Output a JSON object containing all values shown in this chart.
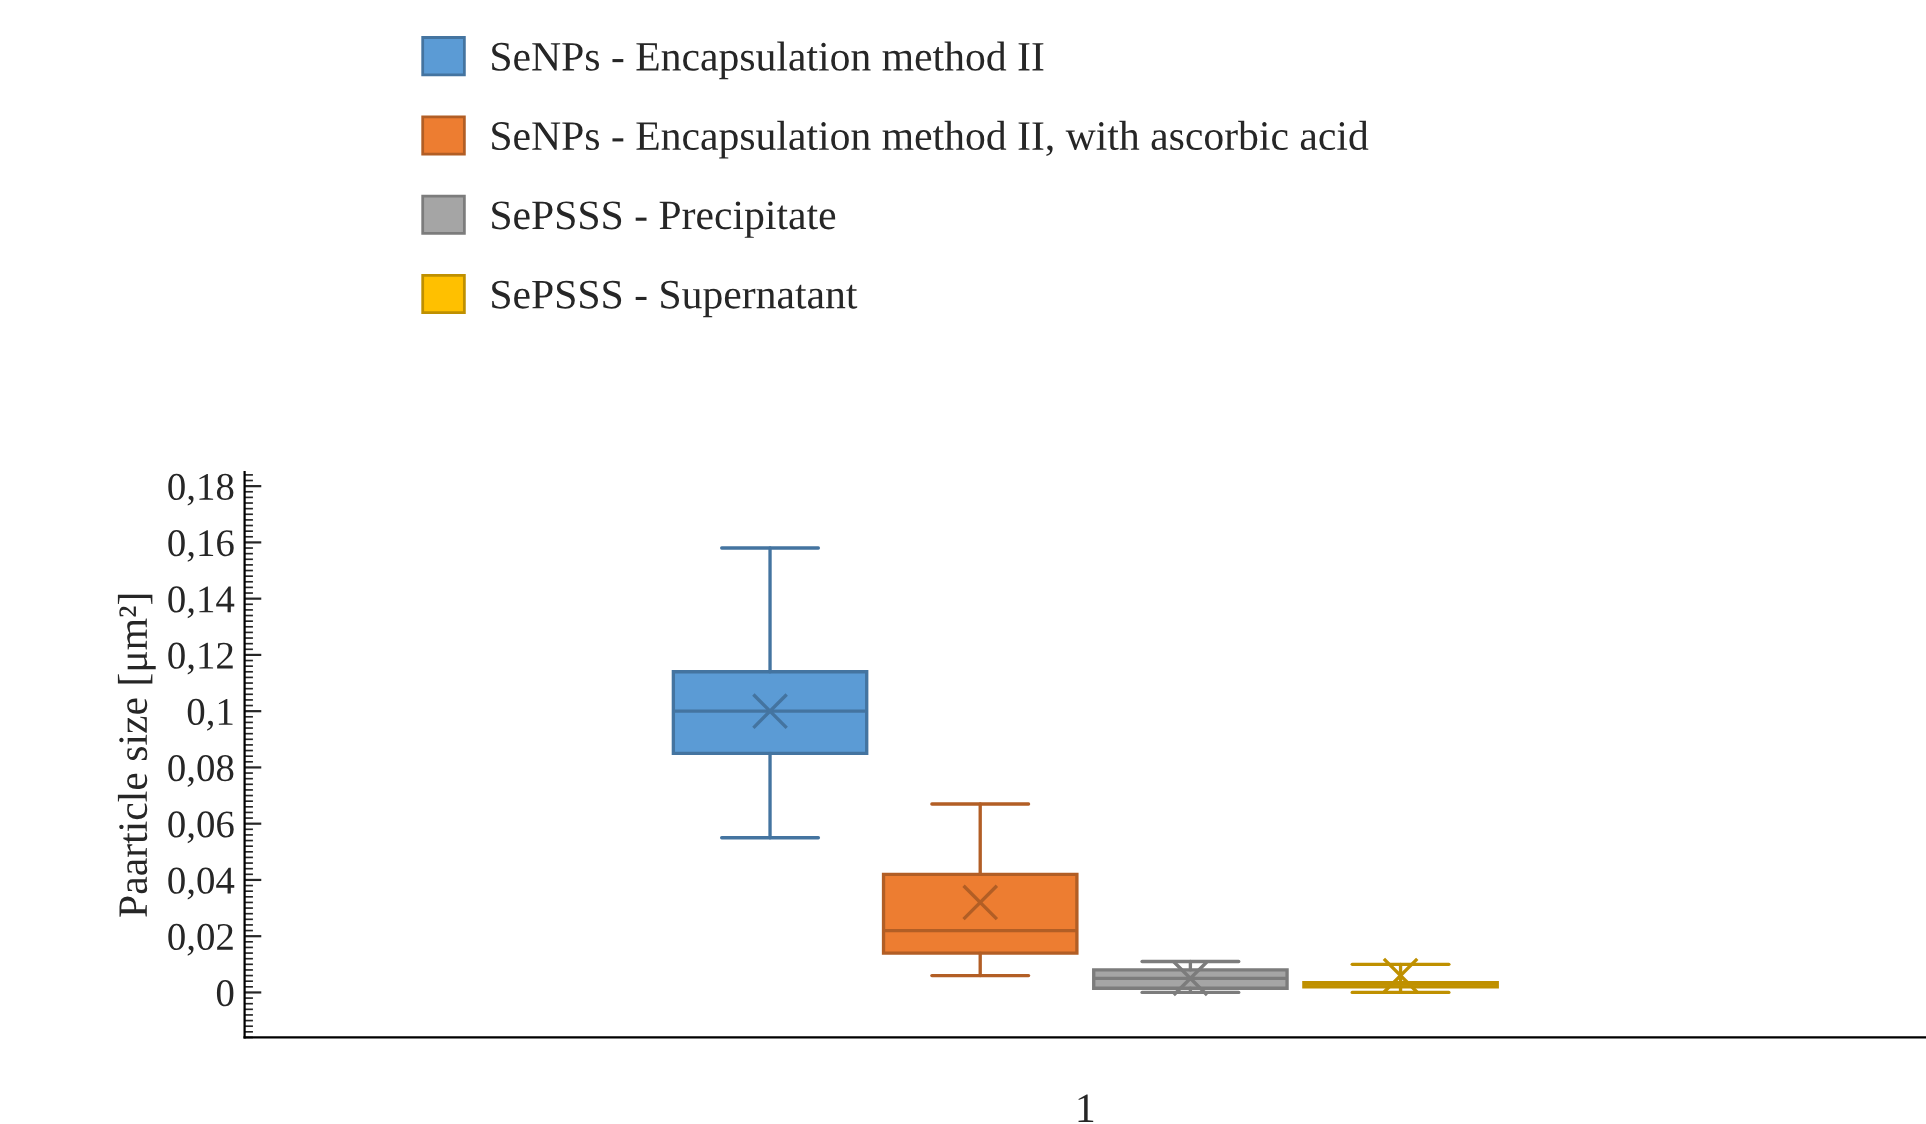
{
  "chart_data": {
    "type": "box",
    "ylabel": "Paarticle size [μm²]",
    "categories": [
      "1"
    ],
    "series": [
      {
        "name": "SeNPs - Encapsulation method II",
        "color": "#5b9bd5",
        "boxes": [
          {
            "low": 0.055,
            "q1": 0.085,
            "median": 0.1,
            "q3": 0.114,
            "high": 0.158,
            "mean": 0.1
          }
        ]
      },
      {
        "name": "SeNPs - Encapsulation method II, with ascorbic acid",
        "color": "#ed7d31",
        "boxes": [
          {
            "low": 0.006,
            "q1": 0.014,
            "median": 0.022,
            "q3": 0.042,
            "high": 0.067,
            "mean": 0.032
          }
        ]
      },
      {
        "name": "SePSSS - Precipitate",
        "color": "#a5a5a5",
        "boxes": [
          {
            "low": 0.0,
            "q1": 0.0015,
            "median": 0.005,
            "q3": 0.008,
            "high": 0.011,
            "mean": 0.005
          }
        ]
      },
      {
        "name": "SePSSS - Supernatant",
        "color": "#ffc000",
        "boxes": [
          {
            "low": 0.0,
            "q1": 0.002,
            "median": 0.003,
            "q3": 0.0035,
            "high": 0.01,
            "mean": 0.006
          }
        ]
      }
    ],
    "ylim": [
      -0.016,
      0.185
    ],
    "yticks": [
      {
        "value": 0,
        "label": "0"
      },
      {
        "value": 0.02,
        "label": "0,02"
      },
      {
        "value": 0.04,
        "label": "0,04"
      },
      {
        "value": 0.06,
        "label": "0,06"
      },
      {
        "value": 0.08,
        "label": "0,08"
      },
      {
        "value": 0.1,
        "label": "0,1"
      },
      {
        "value": 0.12,
        "label": "0,12"
      },
      {
        "value": 0.14,
        "label": "0,14"
      },
      {
        "value": 0.16,
        "label": "0,16"
      },
      {
        "value": 0.18,
        "label": "0,18"
      }
    ],
    "grid": false,
    "legend": "top",
    "marker": "cross"
  }
}
